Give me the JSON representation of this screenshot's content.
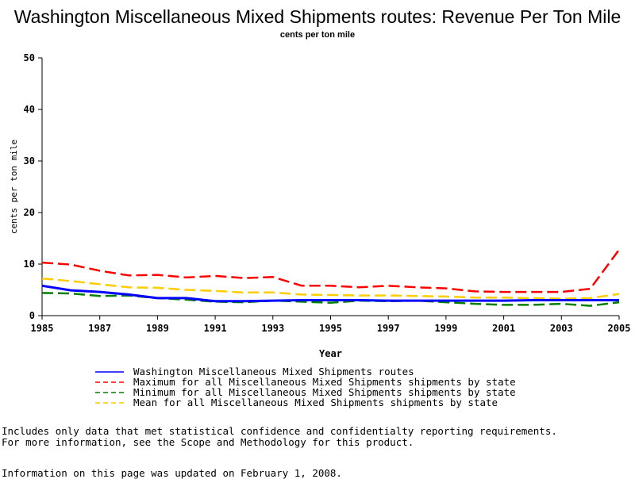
{
  "colors": {
    "washington": "#0000ff",
    "maximum": "#ff0000",
    "minimum": "#008000",
    "mean": "#ffcc00"
  },
  "chart_data": {
    "type": "line",
    "title": "Washington Miscellaneous Mixed Shipments routes: Revenue Per Ton Mile",
    "subtitle": "cents per ton mile",
    "xlabel": "Year",
    "ylabel": "cents per ton mile",
    "xlim": [
      1985,
      2005
    ],
    "ylim": [
      0,
      50
    ],
    "x_ticks": [
      1985,
      1987,
      1989,
      1991,
      1993,
      1995,
      1997,
      1999,
      2001,
      2003,
      2005
    ],
    "y_ticks": [
      0,
      10,
      20,
      30,
      40,
      50
    ],
    "grid": false,
    "legend_position": "bottom",
    "x": [
      1985,
      1986,
      1987,
      1988,
      1989,
      1990,
      1991,
      1992,
      1993,
      1994,
      1995,
      1996,
      1997,
      1998,
      1999,
      2000,
      2001,
      2002,
      2003,
      2004,
      2005
    ],
    "series": [
      {
        "name": "Washington Miscellaneous Mixed Shipments routes",
        "key": "washington",
        "style": "solid",
        "values": [
          5.8,
          4.9,
          4.6,
          4.1,
          3.4,
          3.4,
          2.8,
          2.8,
          2.9,
          3.0,
          3.0,
          3.0,
          2.9,
          2.9,
          2.9,
          2.9,
          2.9,
          3.0,
          3.0,
          3.0,
          3.0
        ]
      },
      {
        "name": "Maximum for all Miscellaneous Mixed Shipments shipments by state",
        "key": "maximum",
        "style": "dashed",
        "values": [
          10.3,
          9.9,
          8.7,
          7.8,
          7.9,
          7.4,
          7.7,
          7.3,
          7.5,
          5.8,
          5.8,
          5.5,
          5.8,
          5.5,
          5.3,
          4.7,
          4.6,
          4.6,
          4.6,
          5.2,
          12.8
        ]
      },
      {
        "name": "Minimum for all Miscellaneous Mixed Shipments shipments by state",
        "key": "minimum",
        "style": "dashed",
        "values": [
          4.4,
          4.3,
          3.8,
          3.9,
          3.4,
          3.1,
          2.7,
          2.6,
          2.9,
          2.7,
          2.5,
          2.9,
          2.8,
          2.9,
          2.6,
          2.3,
          2.1,
          2.1,
          2.3,
          1.9,
          2.6
        ]
      },
      {
        "name": "Mean for all Miscellaneous Mixed Shipments shipments by state",
        "key": "mean",
        "style": "dashed",
        "values": [
          7.2,
          6.7,
          6.1,
          5.5,
          5.4,
          5.0,
          4.8,
          4.5,
          4.5,
          4.1,
          4.0,
          3.9,
          3.9,
          3.8,
          3.7,
          3.5,
          3.5,
          3.4,
          3.3,
          3.4,
          4.2
        ]
      }
    ]
  },
  "notes": {
    "line1": "Includes only data that met statistical confidence and confidentialty reporting requirements.",
    "line2": "For more information, see the Scope and Methodology for this product.",
    "updated": "Information on this page was updated on February 1, 2008."
  }
}
